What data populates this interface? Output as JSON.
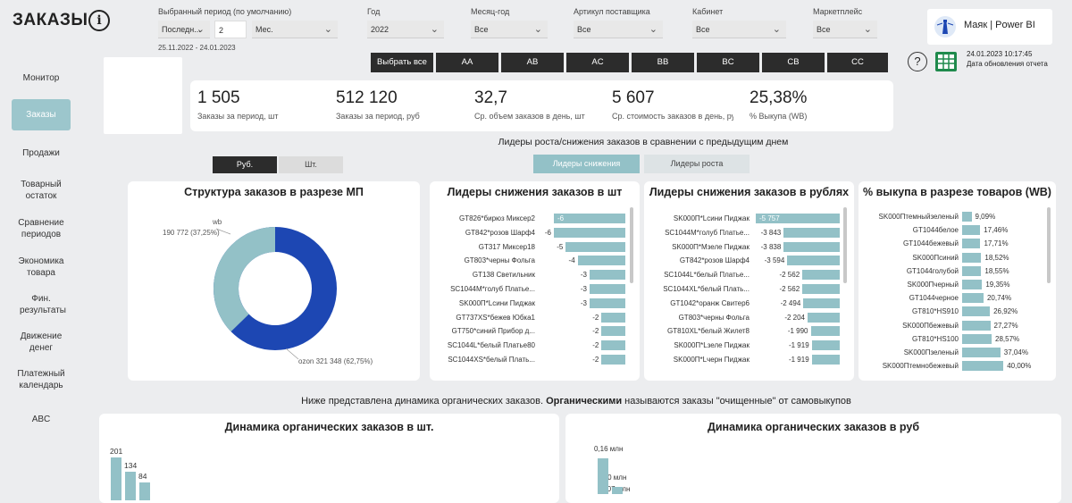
{
  "header": {
    "title": "ЗАКАЗЫ",
    "info": "i",
    "logo_text": "Маяк | Power BI",
    "update_time": "24.01.2023 10:17:45",
    "update_label": "Дата обновления отчета",
    "help": "?"
  },
  "nav": [
    "Монитор",
    "Заказы",
    "Продажи",
    "Товарный остаток",
    "Сравнение периодов",
    "Экономика товара",
    "Фин. результаты",
    "Движение денег",
    "Платежный календарь",
    "ABC"
  ],
  "filters": {
    "period_label": "Выбранный период (по умолчанию)",
    "period_mode": "Последн...",
    "period_count": "2",
    "period_unit": "Мес.",
    "period_range": "25.11.2022 - 24.01.2023",
    "year_label": "Год",
    "year_value": "2022",
    "month_label": "Месяц-год",
    "month_value": "Все",
    "article_label": "Артикул поставщика",
    "article_value": "Все",
    "cabinet_label": "Кабинет",
    "cabinet_value": "Все",
    "market_label": "Маркетплейс",
    "market_value": "Все"
  },
  "cabinet_buttons": [
    "Выбрать все",
    "AA",
    "AB",
    "AC",
    "BB",
    "BC",
    "CB",
    "CC"
  ],
  "kpis": [
    {
      "value": "1 505",
      "label": "Заказы за период, шт"
    },
    {
      "value": "512 120",
      "label": "Заказы за период, руб"
    },
    {
      "value": "32,7",
      "label": "Ср. объем заказов в день, шт"
    },
    {
      "value": "5 607",
      "label": "Ср. стоимость заказов в день, руб"
    },
    {
      "value": "25,38%",
      "label": "% Выкупа (WB)"
    }
  ],
  "leaders_title": "Лидеры роста/снижения заказов в сравнении с предыдущим днем",
  "toggle": {
    "rub": "Руб.",
    "pcs": "Шт."
  },
  "leaders_tabs": {
    "down": "Лидеры снижения",
    "up": "Лидеры роста"
  },
  "donut": {
    "title": "Структура заказов в разрезе МП",
    "wb_label": "wb",
    "wb_value": "190 772 (37,25%)",
    "ozon_label": "ozon 321 348 (62,75%)"
  },
  "bars_pcs": {
    "title": "Лидеры снижения заказов в шт"
  },
  "bars_rub": {
    "title": "Лидеры снижения заказов в рублях"
  },
  "bars_pct": {
    "title": "% выкупа в разрезе товаров (WB)"
  },
  "organic_note_pre": "Ниже представлена динамика органических заказов. ",
  "organic_note_bold": "Органическими",
  "organic_note_post": " называются заказы \"очищенные\" от самовыкупов",
  "dyn_pcs": {
    "title": "Динамика органических заказов в шт."
  },
  "dyn_rub": {
    "title": "Динамика органических заказов в руб"
  },
  "chart_data": [
    {
      "type": "pie",
      "title": "Структура заказов в разрезе МП",
      "categories": [
        "wb",
        "ozon"
      ],
      "values": [
        190772,
        321348
      ],
      "percent": [
        37.25,
        62.75
      ],
      "colors": [
        "#93c1c7",
        "#1d47b3"
      ]
    },
    {
      "type": "bar",
      "title": "Лидеры снижения заказов в шт",
      "categories": [
        "GT826*бирюз Миксер2",
        "GT842*розов Шарф4",
        "GT317 Миксер18",
        "GT803*черны Фольга",
        "GT138 Светильник",
        "SC1044M*голуб Платье...",
        "SK000П*Lсини Пиджак",
        "GT737XS*бежев Юбка1",
        "GT750*синий Прибор д...",
        "SC1044L*белый Платье80",
        "SC1044XS*белый Плать..."
      ],
      "values": [
        -6,
        -6,
        -5,
        -4,
        -3,
        -3,
        -3,
        -2,
        -2,
        -2,
        -2
      ]
    },
    {
      "type": "bar",
      "title": "Лидеры снижения заказов в рублях",
      "categories": [
        "SK000П*Lсини Пиджак",
        "SC1044M*голуб Платье...",
        "SK000П*Mзеле Пиджак",
        "GT842*розов Шарф4",
        "SC1044L*белый Платье...",
        "SC1044XL*белый Плать...",
        "GT1042*оранж Свитер6",
        "GT803*черны Фольга",
        "GT810XL*белый Жилет8",
        "SK000П*Lзеле Пиджак",
        "SK000П*Lчерн Пиджак"
      ],
      "values": [
        -5757,
        -3843,
        -3838,
        -3594,
        -2562,
        -2562,
        -2494,
        -2204,
        -1990,
        -1919,
        -1919
      ]
    },
    {
      "type": "bar",
      "title": "% выкупа в разрезе товаров (WB)",
      "categories": [
        "SK000Птемныйзеленый",
        "GT1044белое",
        "GT1044бежевый",
        "SK000Псиний",
        "GT1044голубой",
        "SK000Пчерный",
        "GT1044черное",
        "GT810*HS910",
        "SK000Пбежевый",
        "GT810*HS100",
        "SK000Пзеленый",
        "SK000Птемнобежевый"
      ],
      "values": [
        9.09,
        17.46,
        17.71,
        18.52,
        18.55,
        19.35,
        20.74,
        26.92,
        27.27,
        28.57,
        37.04,
        40.0
      ],
      "labels": [
        "9,09%",
        "17,46%",
        "17,71%",
        "18,52%",
        "18,55%",
        "19,35%",
        "20,74%",
        "26,92%",
        "27,27%",
        "28,57%",
        "37,04%",
        "40,00%"
      ]
    },
    {
      "type": "bar",
      "title": "Динамика органических заказов в шт.",
      "values": [
        201,
        134,
        84
      ],
      "labels": [
        "201",
        "134",
        "84"
      ]
    },
    {
      "type": "bar",
      "title": "Динамика органических заказов в руб",
      "labels": [
        "0,16 млн",
        "0,10 млн",
        "0,07 млн"
      ]
    }
  ]
}
